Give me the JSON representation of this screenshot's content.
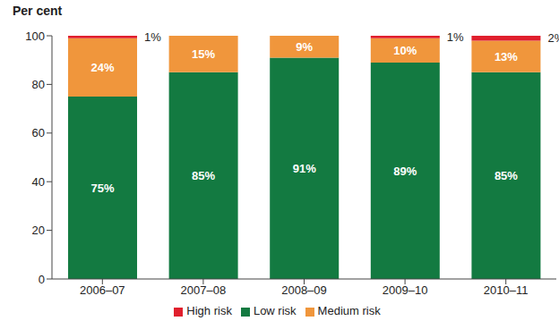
{
  "chart_data": {
    "type": "bar",
    "y_label": "Per cent",
    "categories": [
      "2006–07",
      "2007–08",
      "2008–09",
      "2009–10",
      "2010–11"
    ],
    "series": [
      {
        "name": "Low risk",
        "color": "#137a41",
        "values": [
          75,
          85,
          91,
          89,
          85
        ],
        "value_labels": [
          "75%",
          "85%",
          "91%",
          "89%",
          "85%"
        ]
      },
      {
        "name": "Medium risk",
        "color": "#f0963c",
        "values": [
          24,
          15,
          9,
          10,
          13
        ],
        "value_labels": [
          "24%",
          "15%",
          "9%",
          "10%",
          "13%"
        ]
      },
      {
        "name": "High risk",
        "color": "#e01f2d",
        "values": [
          1,
          0,
          0,
          1,
          2
        ],
        "value_labels": [
          "1%",
          null,
          null,
          "1%",
          "2%"
        ]
      }
    ],
    "ylim": [
      0,
      100
    ],
    "yticks": [
      0,
      20,
      40,
      60,
      80,
      100
    ],
    "stacked": true,
    "data_labels": true,
    "grid": false,
    "legend": "bottom"
  }
}
